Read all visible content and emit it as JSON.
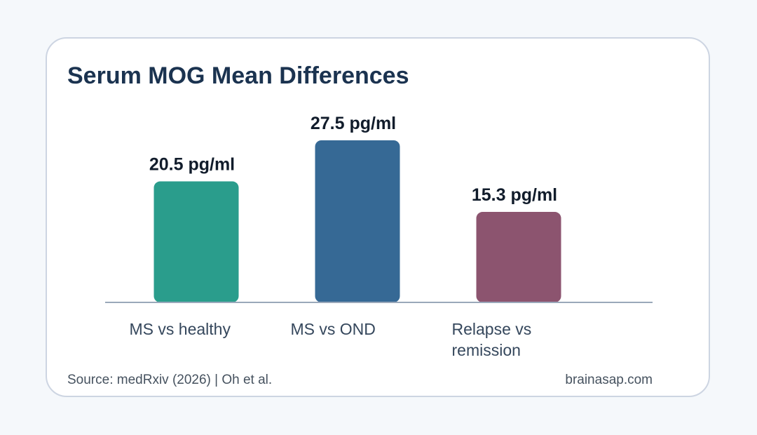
{
  "title": "Serum MOG Mean Differences",
  "footer": {
    "source": "Source: medRxiv (2026) | Oh et al.",
    "site": "brainasap.com"
  },
  "chart_data": {
    "type": "bar",
    "categories": [
      "MS vs healthy",
      "MS vs OND",
      "Relapse vs remission"
    ],
    "category_lines": [
      [
        "MS vs healthy"
      ],
      [
        "MS vs OND"
      ],
      [
        "Relapse vs",
        "remission"
      ]
    ],
    "values": [
      20.5,
      27.5,
      15.3
    ],
    "data_labels": [
      "20.5 pg/ml",
      "27.5 pg/ml",
      "15.3 pg/ml"
    ],
    "unit": "pg/ml",
    "colors": [
      "#2a9d8c",
      "#366995",
      "#8c546f"
    ],
    "ylim": [
      0,
      27.5
    ],
    "grid": false,
    "legend": "none"
  }
}
